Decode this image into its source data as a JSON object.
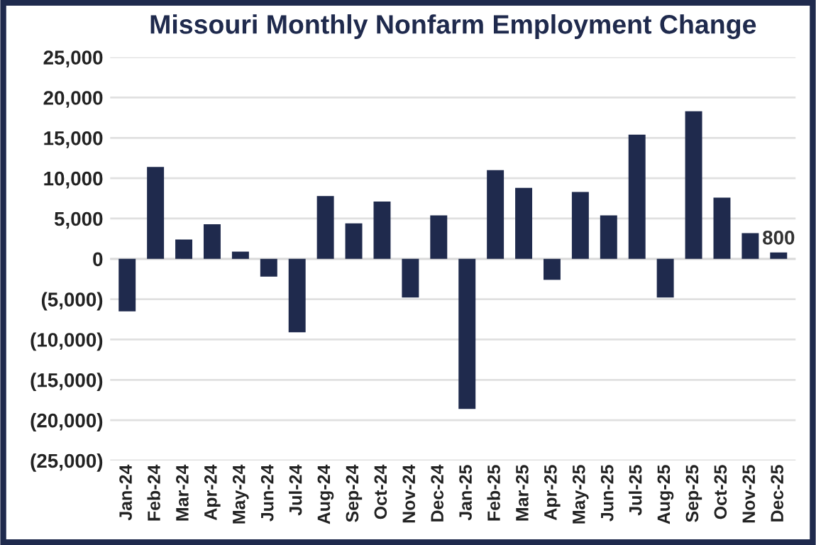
{
  "chart_data": {
    "type": "bar",
    "title": "Missouri Monthly Nonfarm Employment Change",
    "categories": [
      "Jan-24",
      "Feb-24",
      "Mar-24",
      "Apr-24",
      "May-24",
      "Jun-24",
      "Jul-24",
      "Aug-24",
      "Sep-24",
      "Oct-24",
      "Nov-24",
      "Dec-24",
      "Jan-25",
      "Feb-25",
      "Mar-25",
      "Apr-25",
      "May-25",
      "Jun-25",
      "Jul-25",
      "Aug-25",
      "Sep-25",
      "Oct-25",
      "Nov-25",
      "Dec-25"
    ],
    "values": [
      -6500,
      11400,
      2400,
      4300,
      900,
      -2200,
      -9100,
      7800,
      4400,
      7100,
      -4800,
      5400,
      -18600,
      11000,
      8800,
      -2600,
      8300,
      5400,
      15400,
      -4800,
      18300,
      7600,
      3200,
      800
    ],
    "value_labels": [
      null,
      null,
      null,
      null,
      null,
      null,
      null,
      null,
      null,
      null,
      null,
      null,
      null,
      null,
      null,
      null,
      null,
      null,
      null,
      null,
      null,
      null,
      null,
      "800"
    ],
    "color": "#1f2a4d",
    "ylim": [
      -25000,
      25000
    ],
    "yticks": [
      {
        "value": -25000,
        "label": "(25,000)"
      },
      {
        "value": -20000,
        "label": "(20,000)"
      },
      {
        "value": -15000,
        "label": "(15,000)"
      },
      {
        "value": -10000,
        "label": "(10,000)"
      },
      {
        "value": -5000,
        "label": "(5,000)"
      },
      0,
      {
        "value": 5000,
        "label": "5,000"
      },
      {
        "value": 10000,
        "label": "10,000"
      },
      {
        "value": 15000,
        "label": "15,000"
      },
      {
        "value": 20000,
        "label": "20,000"
      },
      {
        "value": 25000,
        "label": "25,000"
      }
    ],
    "grid": "y",
    "legend": false
  }
}
